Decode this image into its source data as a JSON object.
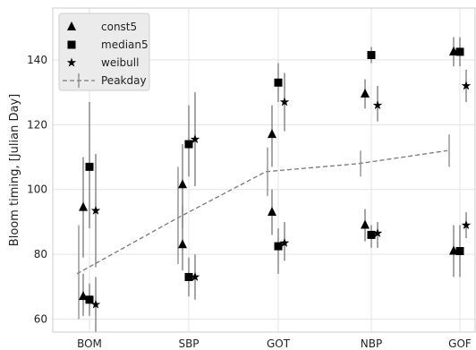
{
  "chart_data": {
    "type": "scatter",
    "title": "",
    "xlabel": "",
    "ylabel": "Bloom timing, [Julian Day]",
    "categories": [
      "BOM",
      "SBP",
      "GOT",
      "NBP",
      "GOF"
    ],
    "ylim": [
      56,
      156
    ],
    "yticks": [
      60,
      80,
      100,
      120,
      140
    ],
    "grid": true,
    "legend_position": "top-left",
    "series": [
      {
        "name": "const5",
        "marker": "triangle",
        "color": "#000000",
        "points": [
          {
            "cat": 0,
            "y": 94.5,
            "lo": 79,
            "hi": 110
          },
          {
            "cat": 0,
            "y": 67,
            "lo": 61,
            "hi": 74
          },
          {
            "cat": 1,
            "y": 101.5,
            "lo": 88,
            "hi": 114
          },
          {
            "cat": 1,
            "y": 83,
            "lo": 75,
            "hi": 95
          },
          {
            "cat": 2,
            "y": 117,
            "lo": 107,
            "hi": 126
          },
          {
            "cat": 2,
            "y": 93,
            "lo": 86,
            "hi": 100
          },
          {
            "cat": 3,
            "y": 129.5,
            "lo": 125,
            "hi": 134
          },
          {
            "cat": 3,
            "y": 89,
            "lo": 84,
            "hi": 94
          },
          {
            "cat": 4,
            "y": 142.5,
            "lo": 138,
            "hi": 147
          },
          {
            "cat": 4,
            "y": 81,
            "lo": 73,
            "hi": 89
          }
        ]
      },
      {
        "name": "median5",
        "marker": "square",
        "color": "#000000",
        "points": [
          {
            "cat": 0,
            "y": 107,
            "lo": 88,
            "hi": 127
          },
          {
            "cat": 0,
            "y": 66,
            "lo": 61,
            "hi": 71
          },
          {
            "cat": 1,
            "y": 114,
            "lo": 104,
            "hi": 126
          },
          {
            "cat": 1,
            "y": 73,
            "lo": 67,
            "hi": 79
          },
          {
            "cat": 2,
            "y": 133,
            "lo": 127,
            "hi": 139
          },
          {
            "cat": 2,
            "y": 82.5,
            "lo": 74,
            "hi": 88
          },
          {
            "cat": 3,
            "y": 141.5,
            "lo": 139,
            "hi": 144
          },
          {
            "cat": 3,
            "y": 86,
            "lo": 82,
            "hi": 89
          },
          {
            "cat": 4,
            "y": 142.5,
            "lo": 138,
            "hi": 147
          },
          {
            "cat": 4,
            "y": 81,
            "lo": 73,
            "hi": 89
          }
        ]
      },
      {
        "name": "weibull",
        "marker": "star",
        "color": "#000000",
        "points": [
          {
            "cat": 0,
            "y": 93.5,
            "lo": 76,
            "hi": 111
          },
          {
            "cat": 0,
            "y": 64.5,
            "lo": 56,
            "hi": 73
          },
          {
            "cat": 1,
            "y": 115.5,
            "lo": 101,
            "hi": 130
          },
          {
            "cat": 1,
            "y": 73,
            "lo": 66,
            "hi": 80
          },
          {
            "cat": 2,
            "y": 127,
            "lo": 118,
            "hi": 136
          },
          {
            "cat": 2,
            "y": 83.5,
            "lo": 78,
            "hi": 90
          },
          {
            "cat": 3,
            "y": 126,
            "lo": 121,
            "hi": 132
          },
          {
            "cat": 3,
            "y": 86.5,
            "lo": 82,
            "hi": 90
          },
          {
            "cat": 4,
            "y": 132,
            "lo": 127,
            "hi": 137
          },
          {
            "cat": 4,
            "y": 89,
            "lo": 85,
            "hi": 93
          }
        ]
      }
    ],
    "peakday": {
      "name": "Peakday",
      "style": "dashed",
      "color": "#777777",
      "points": [
        {
          "cat": 0,
          "y": 74,
          "lo": 60,
          "hi": 89
        },
        {
          "cat": 1,
          "y": 91,
          "lo": 77,
          "hi": 107
        },
        {
          "cat": 2,
          "y": 105.5,
          "lo": 98,
          "hi": 113
        },
        {
          "cat": 3,
          "y": 108,
          "lo": 104,
          "hi": 112
        },
        {
          "cat": 4,
          "y": 112,
          "lo": 107,
          "hi": 117
        }
      ]
    }
  }
}
